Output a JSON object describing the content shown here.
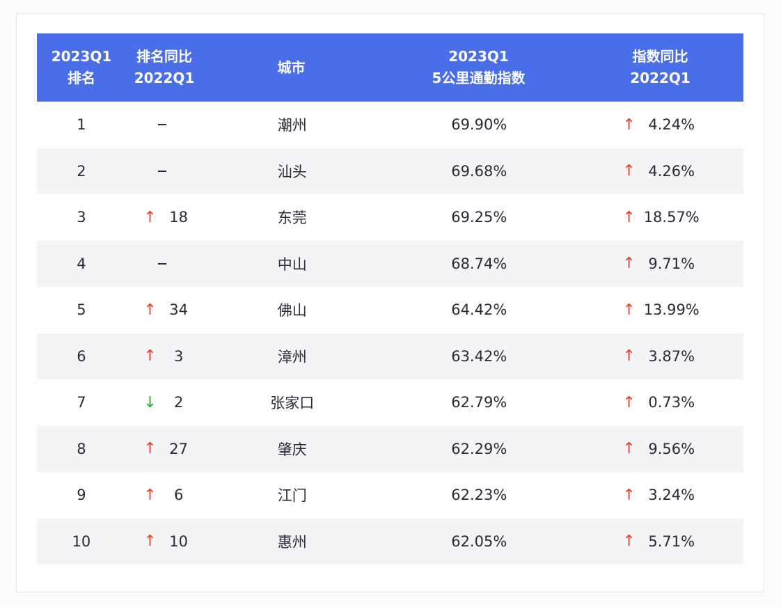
{
  "header": {
    "col_rank": [
      "2023Q1",
      "排名"
    ],
    "col_rank_change": [
      "排名同比",
      "2022Q1"
    ],
    "col_city": [
      "城市"
    ],
    "col_index": [
      "2023Q1",
      "5公里通勤指数"
    ],
    "col_index_change": [
      "指数同比",
      "2022Q1"
    ]
  },
  "colors": {
    "header_bg": "#4a6ee8",
    "up": "#e8402a",
    "down": "#2ea52e",
    "row_shade": "#f3f4f6"
  },
  "rows": [
    {
      "rank": "1",
      "rank_change_dir": "none",
      "rank_change": "–",
      "city": "潮州",
      "index": "69.90%",
      "index_change_dir": "up",
      "index_change": "4.24%"
    },
    {
      "rank": "2",
      "rank_change_dir": "none",
      "rank_change": "–",
      "city": "汕头",
      "index": "69.68%",
      "index_change_dir": "up",
      "index_change": "4.26%"
    },
    {
      "rank": "3",
      "rank_change_dir": "up",
      "rank_change": "18",
      "city": "东莞",
      "index": "69.25%",
      "index_change_dir": "up",
      "index_change": "18.57%"
    },
    {
      "rank": "4",
      "rank_change_dir": "none",
      "rank_change": "–",
      "city": "中山",
      "index": "68.74%",
      "index_change_dir": "up",
      "index_change": "9.71%"
    },
    {
      "rank": "5",
      "rank_change_dir": "up",
      "rank_change": "34",
      "city": "佛山",
      "index": "64.42%",
      "index_change_dir": "up",
      "index_change": "13.99%"
    },
    {
      "rank": "6",
      "rank_change_dir": "up",
      "rank_change": "3",
      "city": "漳州",
      "index": "63.42%",
      "index_change_dir": "up",
      "index_change": "3.87%"
    },
    {
      "rank": "7",
      "rank_change_dir": "down",
      "rank_change": "2",
      "city": "张家口",
      "index": "62.79%",
      "index_change_dir": "up",
      "index_change": "0.73%"
    },
    {
      "rank": "8",
      "rank_change_dir": "up",
      "rank_change": "27",
      "city": "肇庆",
      "index": "62.29%",
      "index_change_dir": "up",
      "index_change": "9.56%"
    },
    {
      "rank": "9",
      "rank_change_dir": "up",
      "rank_change": "6",
      "city": "江门",
      "index": "62.23%",
      "index_change_dir": "up",
      "index_change": "3.24%"
    },
    {
      "rank": "10",
      "rank_change_dir": "up",
      "rank_change": "10",
      "city": "惠州",
      "index": "62.05%",
      "index_change_dir": "up",
      "index_change": "5.71%"
    }
  ],
  "icons": {
    "up": "↑",
    "down": "↓"
  }
}
